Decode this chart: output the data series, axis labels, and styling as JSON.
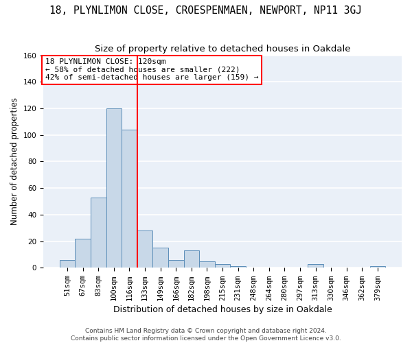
{
  "title": "18, PLYNLIMON CLOSE, CROESPENMAEN, NEWPORT, NP11 3GJ",
  "subtitle": "Size of property relative to detached houses in Oakdale",
  "xlabel": "Distribution of detached houses by size in Oakdale",
  "ylabel": "Number of detached properties",
  "categories": [
    "51sqm",
    "67sqm",
    "83sqm",
    "100sqm",
    "116sqm",
    "133sqm",
    "149sqm",
    "166sqm",
    "182sqm",
    "198sqm",
    "215sqm",
    "231sqm",
    "248sqm",
    "264sqm",
    "280sqm",
    "297sqm",
    "313sqm",
    "330sqm",
    "346sqm",
    "362sqm",
    "379sqm"
  ],
  "values": [
    6,
    22,
    53,
    120,
    104,
    28,
    15,
    6,
    13,
    5,
    3,
    1,
    0,
    0,
    0,
    0,
    3,
    0,
    0,
    0,
    1
  ],
  "bar_color": "#c8d8e8",
  "bar_edge_color": "#5b8db8",
  "vline_x_idx": 4.5,
  "vline_color": "red",
  "annotation_line1": "18 PLYNLIMON CLOSE: 120sqm",
  "annotation_line2": "← 58% of detached houses are smaller (222)",
  "annotation_line3": "42% of semi-detached houses are larger (159) →",
  "annotation_box_color": "white",
  "annotation_box_edge_color": "red",
  "ylim": [
    0,
    160
  ],
  "yticks": [
    0,
    20,
    40,
    60,
    80,
    100,
    120,
    140,
    160
  ],
  "footnote": "Contains HM Land Registry data © Crown copyright and database right 2024.\nContains public sector information licensed under the Open Government Licence v3.0.",
  "background_color": "#eaf0f8",
  "grid_color": "white",
  "title_fontsize": 10.5,
  "subtitle_fontsize": 9.5,
  "axis_label_fontsize": 8.5,
  "tick_fontsize": 7.5,
  "annotation_fontsize": 8,
  "footnote_fontsize": 6.5
}
